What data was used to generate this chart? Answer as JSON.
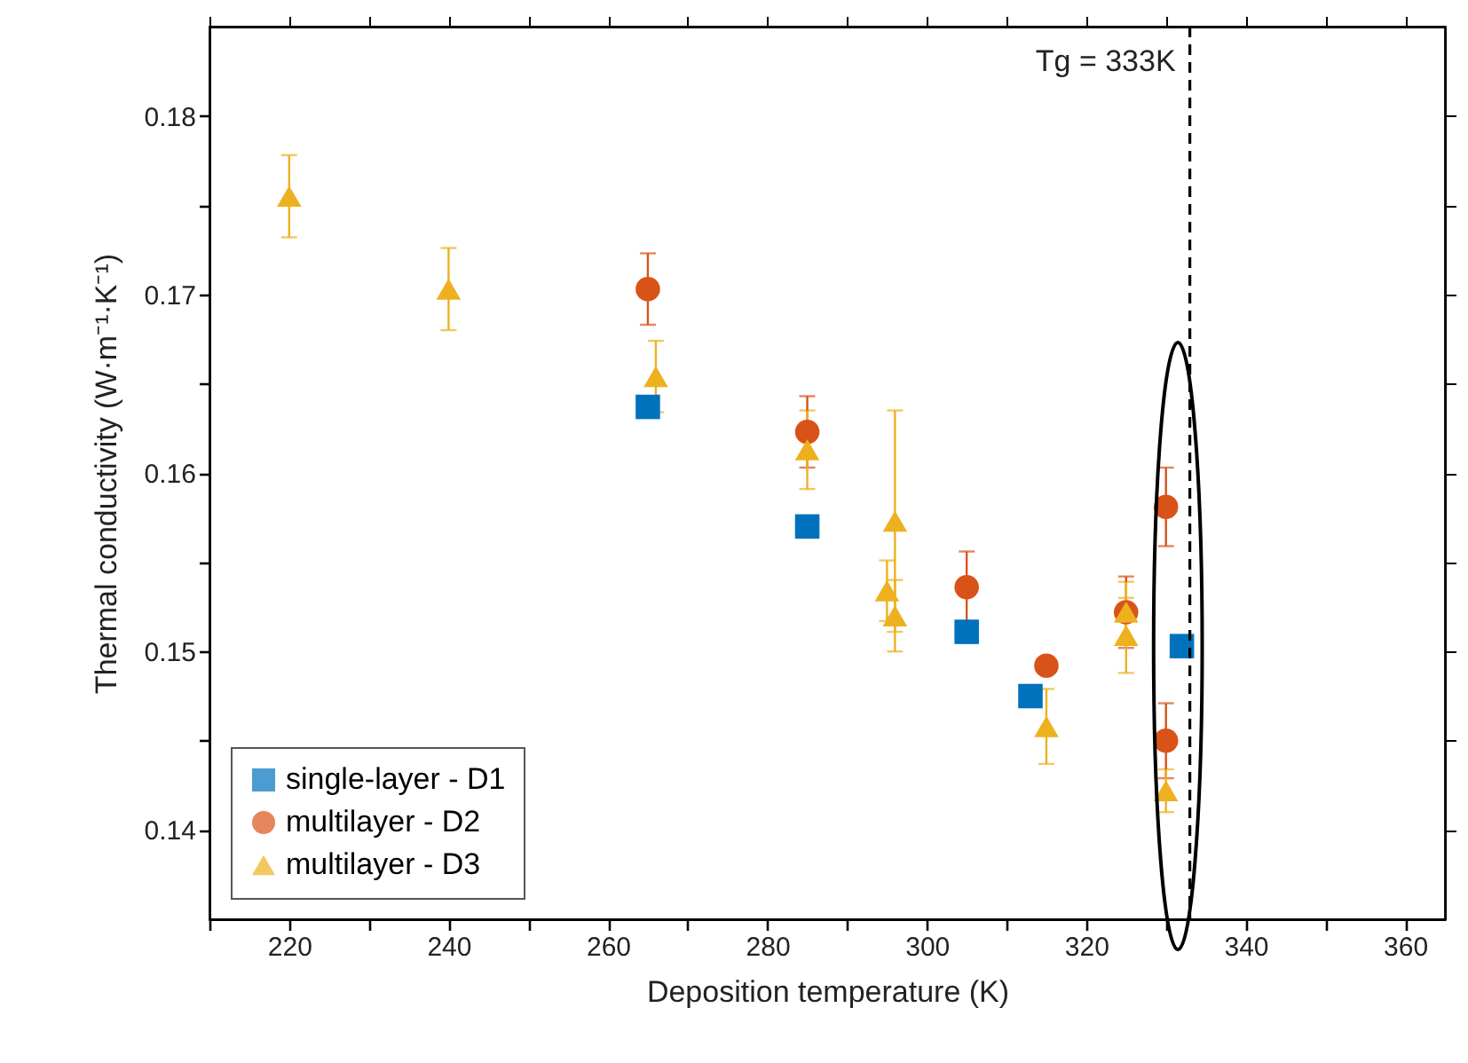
{
  "chart_data": {
    "type": "scatter",
    "xlabel": "Deposition temperature (K)",
    "ylabel": "Thermal conductivity (W·m⁻¹·K⁻¹)",
    "xlim": [
      210,
      365
    ],
    "ylim": [
      0.135,
      0.185
    ],
    "xticks": [
      {
        "value": 210,
        "label": null
      },
      220,
      {
        "value": 230,
        "label": null
      },
      240,
      {
        "value": 250,
        "label": null
      },
      260,
      {
        "value": 270,
        "label": null
      },
      280,
      {
        "value": 290,
        "label": null
      },
      300,
      {
        "value": 310,
        "label": null
      },
      320,
      {
        "value": 330,
        "label": null
      },
      340,
      {
        "value": 350,
        "label": null
      },
      360
    ],
    "yticks": [
      0.14,
      {
        "value": 0.145,
        "label": null
      },
      0.15,
      {
        "value": 0.155,
        "label": null
      },
      0.16,
      {
        "value": 0.165,
        "label": null
      },
      0.17,
      {
        "value": 0.175,
        "label": null
      },
      0.18
    ],
    "grid": false,
    "legend": "bottom left",
    "series": [
      {
        "name": "single-layer - D1",
        "color": "#0072bd",
        "marker": "square",
        "x": [
          265,
          285,
          305,
          313,
          332
        ],
        "values": [
          0.1637,
          0.157,
          0.1511,
          0.1475,
          0.1503
        ],
        "errors": [
          0.0006,
          0.0006,
          0.0005,
          0.0004,
          0.0005
        ]
      },
      {
        "name": "multilayer - D2",
        "color": "#d95319",
        "marker": "circle",
        "x": [
          265,
          285,
          305,
          315,
          325,
          330,
          330
        ],
        "values": [
          0.1703,
          0.1623,
          0.1536,
          0.1492,
          0.1522,
          0.1581,
          0.145
        ],
        "errors": [
          0.002,
          0.002,
          0.002,
          null,
          0.002,
          0.0022,
          0.0021
        ]
      },
      {
        "name": "multilayer - D3",
        "color": "#edb120",
        "marker": "triangle",
        "x": [
          220,
          240,
          266,
          285,
          295,
          296,
          296,
          315,
          325,
          325,
          330
        ],
        "values": [
          0.1755,
          0.1703,
          0.1654,
          0.1613,
          0.1534,
          0.1573,
          0.152,
          0.1458,
          0.1522,
          0.1509,
          0.1422
        ],
        "errors": [
          0.0023,
          0.0023,
          0.002,
          0.0022,
          0.0017,
          0.0062,
          0.002,
          0.0021,
          0.0017,
          0.0021,
          0.0012
        ]
      }
    ],
    "ref_lines": [
      {
        "axis": "x",
        "value": 333,
        "label": "Tg = 333K",
        "color": "#000000",
        "line_style": "dashed"
      }
    ]
  }
}
